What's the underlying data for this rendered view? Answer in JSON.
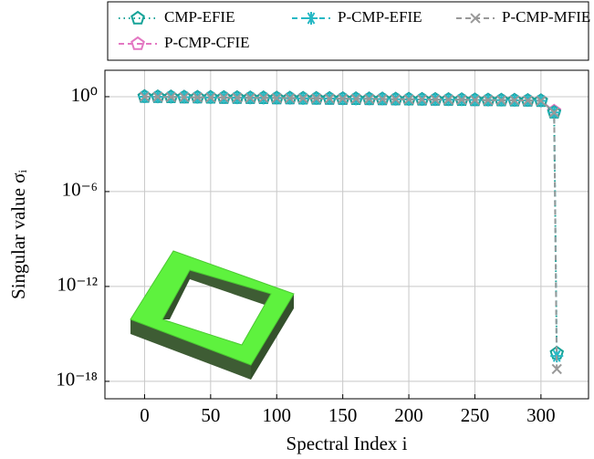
{
  "chart_data": {
    "type": "line",
    "xlabel": "Spectral Index i",
    "ylabel": "Singular value σᵢ",
    "x": [
      0,
      10,
      20,
      30,
      40,
      50,
      60,
      70,
      80,
      90,
      100,
      110,
      120,
      130,
      140,
      150,
      160,
      170,
      180,
      190,
      200,
      210,
      220,
      230,
      240,
      250,
      260,
      270,
      280,
      290,
      300,
      310,
      312
    ],
    "series": [
      {
        "name": "CMP-EFIE",
        "color": "#17a398",
        "marker": "pentagon",
        "dash": "dotted",
        "values": [
          1.0,
          0.97,
          0.95,
          0.93,
          0.91,
          0.89,
          0.87,
          0.86,
          0.84,
          0.83,
          0.81,
          0.8,
          0.78,
          0.77,
          0.76,
          0.74,
          0.73,
          0.72,
          0.71,
          0.69,
          0.68,
          0.67,
          0.66,
          0.65,
          0.64,
          0.62,
          0.61,
          0.6,
          0.59,
          0.57,
          0.55,
          0.1,
          6e-17
        ]
      },
      {
        "name": "P-CMP-EFIE",
        "color": "#26b8c4",
        "marker": "star",
        "dash": "dashed",
        "values": [
          1.0,
          0.97,
          0.95,
          0.93,
          0.91,
          0.89,
          0.87,
          0.86,
          0.84,
          0.83,
          0.81,
          0.8,
          0.78,
          0.77,
          0.76,
          0.74,
          0.73,
          0.72,
          0.71,
          0.69,
          0.68,
          0.67,
          0.66,
          0.65,
          0.64,
          0.62,
          0.61,
          0.6,
          0.59,
          0.57,
          0.55,
          0.1,
          4e-17
        ]
      },
      {
        "name": "P-CMP-MFIE",
        "color": "#999999",
        "marker": "cross",
        "dash": "dashed",
        "values": [
          1.0,
          0.97,
          0.95,
          0.93,
          0.91,
          0.89,
          0.87,
          0.86,
          0.84,
          0.83,
          0.81,
          0.8,
          0.78,
          0.77,
          0.76,
          0.74,
          0.73,
          0.72,
          0.71,
          0.69,
          0.68,
          0.67,
          0.66,
          0.65,
          0.64,
          0.62,
          0.61,
          0.6,
          0.59,
          0.57,
          0.55,
          0.1,
          6e-18
        ]
      },
      {
        "name": "P-CMP-CFIE",
        "color": "#e377c2",
        "marker": "pentagon",
        "dash": "dashed",
        "values": [
          1.0,
          0.97,
          0.95,
          0.93,
          0.91,
          0.89,
          0.87,
          0.86,
          0.84,
          0.83,
          0.81,
          0.8,
          0.78,
          0.77,
          0.76,
          0.74,
          0.73,
          0.72,
          0.71,
          0.69,
          0.68,
          0.67,
          0.66,
          0.65,
          0.64,
          0.62,
          0.61,
          0.6,
          0.59,
          0.57,
          0.55,
          0.12,
          null
        ]
      }
    ],
    "xlim": [
      -30,
      336
    ],
    "xticks": [
      0,
      50,
      100,
      150,
      200,
      250,
      300
    ],
    "ylim": [
      7.9e-20,
      46.8
    ],
    "yticks": [
      {
        "value": 1,
        "label": "10⁰"
      },
      {
        "value": 1e-06,
        "label": "10⁻⁶"
      },
      {
        "value": 1e-12,
        "label": "10⁻¹²"
      },
      {
        "value": 1e-18,
        "label": "10⁻¹⁸"
      }
    ],
    "ylog": true,
    "grid": true,
    "legend": "top"
  }
}
